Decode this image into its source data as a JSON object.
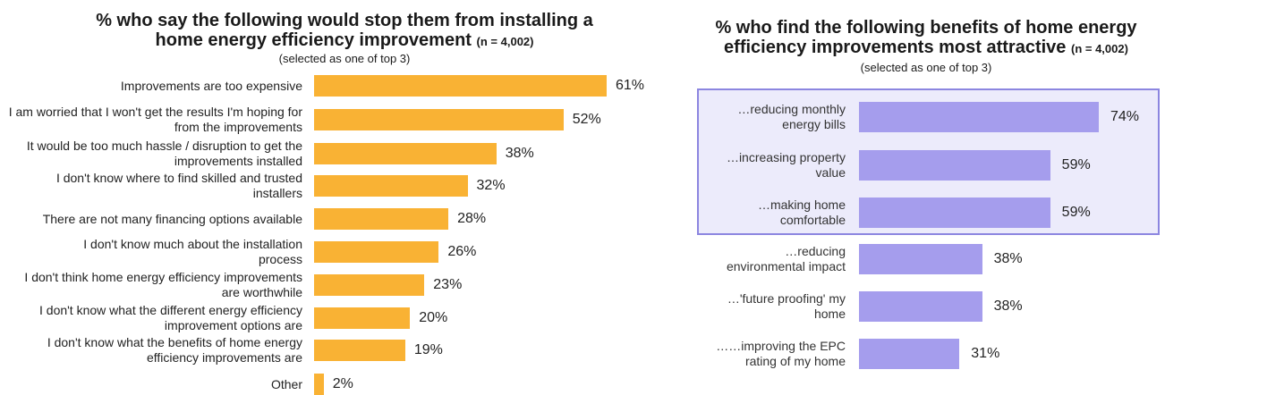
{
  "chart_data": [
    {
      "type": "bar",
      "orientation": "horizontal",
      "title": "% who say the following would stop them from installing a home energy efficiency improvement",
      "title_line1": "% who say the following would stop them from installing a",
      "title_line2": "home energy efficiency improvement",
      "sample": "(n = 4,002)",
      "subtitle": "(selected as one of top 3)",
      "categories": [
        [
          "Improvements are too expensive"
        ],
        [
          "I am worried that I won't get the results I'm hoping for",
          "from the improvements"
        ],
        [
          "It would be too much hassle / disruption to get the",
          "improvements installed"
        ],
        [
          "I don't know where to find skilled and trusted",
          "installers"
        ],
        [
          "There are not many financing options available"
        ],
        [
          "I don't know much about the installation",
          "process"
        ],
        [
          "I don't think home energy efficiency improvements",
          "are worthwhile"
        ],
        [
          "I don't know what the different energy efficiency",
          "improvement options are"
        ],
        [
          "I don't know what the benefits of home energy",
          "efficiency improvements are"
        ],
        [
          "Other"
        ]
      ],
      "values": [
        61,
        52,
        38,
        32,
        28,
        26,
        23,
        20,
        19,
        2
      ],
      "labels": [
        "61%",
        "52%",
        "38%",
        "32%",
        "28%",
        "26%",
        "23%",
        "20%",
        "19%",
        "2%"
      ],
      "xlim": [
        0,
        100
      ],
      "color": "#f9b234"
    },
    {
      "type": "bar",
      "orientation": "horizontal",
      "title": "% who find the following benefits of home energy efficiency improvements most attractive",
      "title_line1": "% who find the following benefits of home energy",
      "title_line2": "efficiency improvements most attractive",
      "sample": "(n = 4,002)",
      "subtitle": "(selected as one of top 3)",
      "categories": [
        [
          "…reducing monthly",
          "energy bills"
        ],
        [
          "…increasing property",
          "value"
        ],
        [
          "…making home",
          "comfortable"
        ],
        [
          "…reducing",
          "environmental impact"
        ],
        [
          "…'future proofing' my",
          "home"
        ],
        [
          "……improving the EPC",
          "rating of my home"
        ]
      ],
      "values": [
        74,
        59,
        59,
        38,
        38,
        31
      ],
      "labels": [
        "74%",
        "59%",
        "59%",
        "38%",
        "38%",
        "31%"
      ],
      "xlim": [
        0,
        100
      ],
      "highlighted_top": 3,
      "color": "#a59ded",
      "highlight_fill": "#ecebfb",
      "highlight_border": "#8c86e0"
    }
  ]
}
